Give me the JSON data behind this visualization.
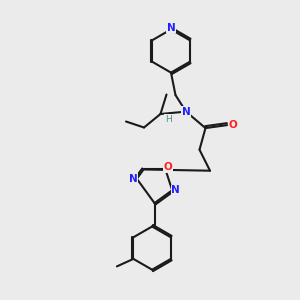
{
  "bg_color": "#ebebeb",
  "bond_color": "#1a1a1a",
  "N_color": "#2020ff",
  "O_color": "#ff2020",
  "H_color": "#4a9090",
  "lw": 1.5,
  "xlim": [
    0,
    10
  ],
  "ylim": [
    0,
    10
  ]
}
